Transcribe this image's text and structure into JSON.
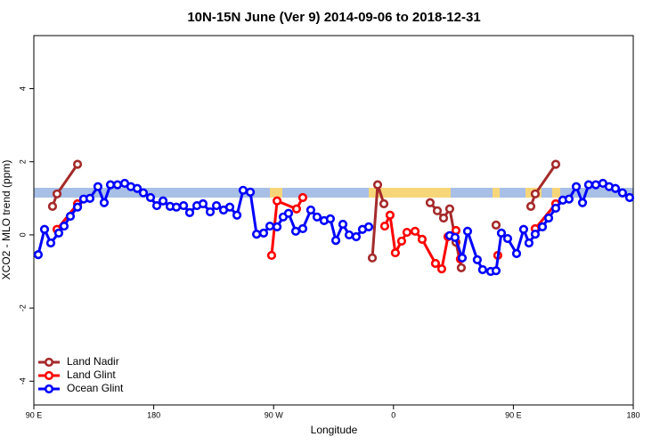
{
  "chart_data": {
    "type": "line",
    "title": "10N-15N June (Ver 9)   2014-09-06 to 2018-12-31",
    "x_label": "Longitude",
    "y_label": "XCO2 - MLO trend (ppm)",
    "xlim": [
      90,
      540
    ],
    "ylim": [
      -4.65,
      5.45
    ],
    "xticks": [
      {
        "value": 90,
        "label": "90 E"
      },
      {
        "value": 180,
        "label": "180"
      },
      {
        "value": 270,
        "label": "90 W"
      },
      {
        "value": 360,
        "label": "0"
      },
      {
        "value": 450,
        "label": "90 E"
      },
      {
        "value": 540,
        "label": "180"
      }
    ],
    "yticks": [
      -4,
      -2,
      0,
      2,
      4
    ],
    "legend": "bottomleft",
    "series": [
      {
        "name": "Land Nadir",
        "color": "#a52a2a",
        "x": [
          104.0,
          107.4,
          122.8,
          null,
          344.1,
          348.1,
          352.8,
          null,
          387.5,
          392.9,
          397.6,
          402.2,
          406.9,
          410.9,
          null,
          437.0,
          null,
          463.1,
          466.4,
          481.8
        ],
        "values": [
          0.78,
          1.12,
          1.93,
          null,
          -0.63,
          1.37,
          0.85,
          null,
          0.88,
          0.66,
          0.46,
          0.71,
          -0.2,
          -0.9,
          null,
          0.27,
          null,
          0.78,
          1.12,
          1.93
        ]
      },
      {
        "name": "Land Glint",
        "color": "#ff0000",
        "x": [
          107.4,
          122.8,
          null,
          268.5,
          272.6,
          287.2,
          291.9,
          null,
          353.4,
          357.4,
          361.4,
          366.1,
          370.1,
          376.2,
          381.5,
          391.5,
          396.2,
          400.9,
          406.9,
          410.2,
          null,
          438.3,
          null,
          466.4,
          481.8
        ],
        "values": [
          0.15,
          0.85,
          null,
          -0.56,
          0.93,
          0.71,
          1.02,
          null,
          0.24,
          0.54,
          -0.49,
          -0.17,
          0.07,
          0.1,
          -0.12,
          -0.78,
          -0.93,
          -0.05,
          0.12,
          -0.66,
          null,
          -0.56,
          null,
          0.17,
          0.85
        ]
      },
      {
        "name": "Ocean Glint",
        "color": "#0000ff",
        "x": [
          93.3,
          98.0,
          102.7,
          108.7,
          112.7,
          117.4,
          122.8,
          127.4,
          132.1,
          138.1,
          142.8,
          147.5,
          152.8,
          158.2,
          162.8,
          167.6,
          172.2,
          177.6,
          182.3,
          187.0,
          192.3,
          197.0,
          202.4,
          207.0,
          212.4,
          217.0,
          222.4,
          227.1,
          232.4,
          237.1,
          242.5,
          247.1,
          252.5,
          257.2,
          262.5,
          267.2,
          272.6,
          277.2,
          281.2,
          286.6,
          291.9,
          297.9,
          302.6,
          307.9,
          312.6,
          316.7,
          322.0,
          326.7,
          332.0,
          336.7,
          341.4,
          null,
          402.2,
          406.2,
          411.6,
          415.6,
          422.9,
          426.9,
          433.0,
          437.0,
          441.0,
          445.7,
          452.4,
          457.7,
          461.7,
          466.4,
          471.8,
          476.5,
          481.8,
          487.1,
          491.8,
          497.2,
          501.9,
          506.5,
          511.9,
          517.2,
          521.9,
          526.6,
          531.9,
          537.3
        ],
        "values": [
          -0.54,
          0.15,
          -0.22,
          0.05,
          0.24,
          0.51,
          0.76,
          0.98,
          1.0,
          1.32,
          0.88,
          1.37,
          1.37,
          1.41,
          1.32,
          1.27,
          1.15,
          1.02,
          0.8,
          0.93,
          0.78,
          0.76,
          0.8,
          0.61,
          0.8,
          0.85,
          0.63,
          0.8,
          0.68,
          0.76,
          0.54,
          1.22,
          1.17,
          0.02,
          0.05,
          0.24,
          0.22,
          0.49,
          0.59,
          0.1,
          0.17,
          0.68,
          0.49,
          0.39,
          0.44,
          -0.15,
          0.29,
          0,
          -0.05,
          0.15,
          0.22,
          null,
          -0.02,
          -0.07,
          -0.63,
          0.1,
          -0.68,
          -0.95,
          -1.0,
          -0.98,
          0.05,
          -0.1,
          -0.51,
          0.15,
          -0.22,
          0.02,
          0.22,
          0.46,
          0.73,
          0.95,
          0.98,
          1.32,
          0.88,
          1.37,
          1.37,
          1.41,
          1.32,
          1.27,
          1.15,
          1.02
        ]
      }
    ]
  }
}
